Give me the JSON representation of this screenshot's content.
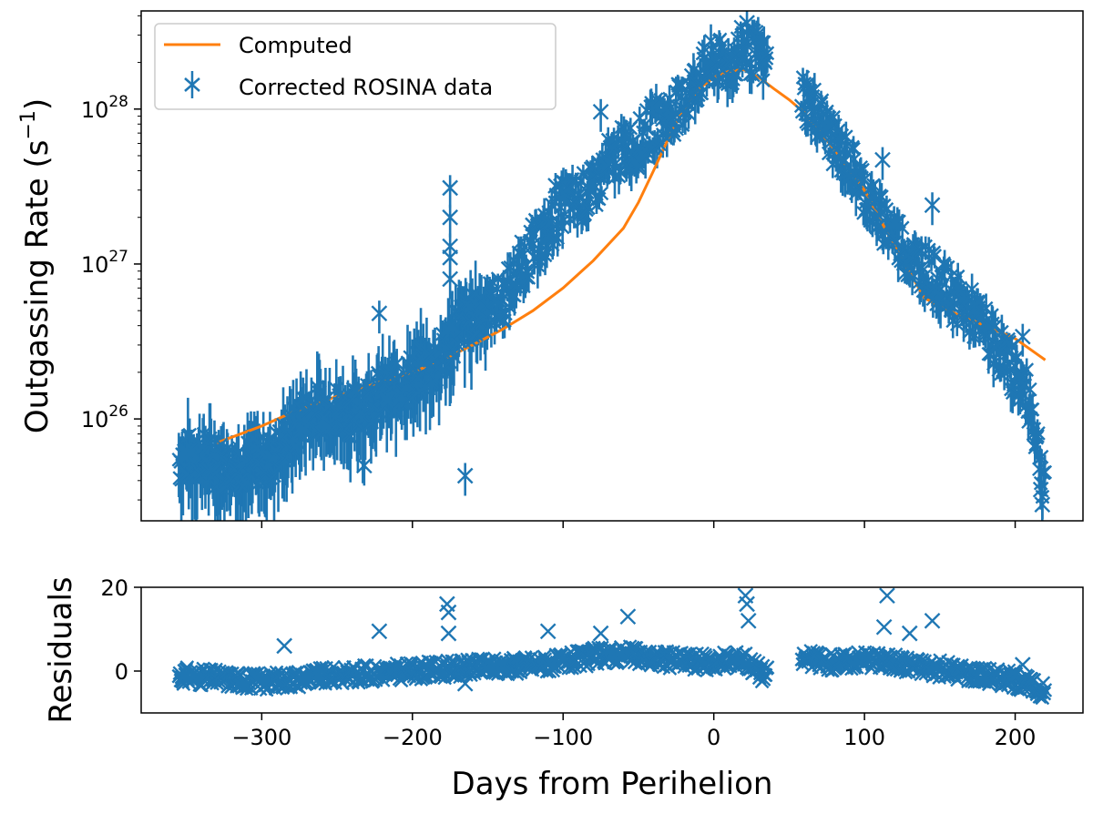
{
  "chart_data": [
    {
      "type": "line+scatter",
      "panel": "top",
      "yscale": "log",
      "ylabel": "Outgassing Rate (s⁻¹)",
      "ylabel_base": "Outgassing Rate (s",
      "ylabel_sup": "−1",
      "ylabel_close": ")",
      "xlim": [
        -380,
        245
      ],
      "ylim": [
        2.2e+25,
        4.3e+28
      ],
      "y_ticks": [
        {
          "value": 1e+26,
          "base": "10",
          "exp": "26"
        },
        {
          "value": 1e+27,
          "base": "10",
          "exp": "27"
        },
        {
          "value": 1e+28,
          "base": "10",
          "exp": "28"
        }
      ],
      "legend": {
        "placement": "top-left",
        "entries": [
          "Computed",
          "Corrected ROSINA data"
        ]
      },
      "series": [
        {
          "name": "Computed",
          "kind": "line",
          "color": "#ff7f0e",
          "x": [
            -330,
            -300,
            -280,
            -260,
            -240,
            -220,
            -200,
            -180,
            -160,
            -140,
            -120,
            -100,
            -80,
            -60,
            -50,
            -40,
            -30,
            -20,
            -10,
            0,
            10,
            20,
            30,
            40,
            50,
            60,
            80,
            100,
            120,
            140,
            160,
            180,
            200,
            220
          ],
          "y": [
            7e+25,
            9e+25,
            1.1e+26,
            1.3e+26,
            1.5e+26,
            1.75e+26,
            2e+26,
            2.4e+26,
            3e+26,
            3.8e+26,
            5e+26,
            7e+26,
            1.05e+27,
            1.7e+27,
            2.5e+27,
            4e+27,
            6.5e+27,
            1e+28,
            1.35e+28,
            1.6e+28,
            1.75e+28,
            1.8e+28,
            1.6e+28,
            1.35e+28,
            1.15e+28,
            9.5e+27,
            5.5e+27,
            3e+27,
            1.3e+27,
            6e+26,
            4.8e+26,
            4e+26,
            3.3e+26,
            2.4e+26
          ]
        },
        {
          "name": "Corrected ROSINA data",
          "kind": "errorbar-scatter",
          "color": "#1f77b4",
          "x_range": [
            -355,
            220
          ],
          "x": [
            -355,
            -340,
            -325,
            -310,
            -295,
            -285,
            -270,
            -255,
            -240,
            -225,
            -210,
            -200,
            -190,
            -180,
            -170,
            -160,
            -150,
            -140,
            -130,
            -120,
            -110,
            -100,
            -90,
            -80,
            -70,
            -60,
            -50,
            -40,
            -30,
            -20,
            -10,
            0,
            10,
            20,
            30,
            35,
            60,
            70,
            80,
            90,
            100,
            110,
            120,
            130,
            140,
            150,
            160,
            170,
            180,
            190,
            200,
            210,
            218
          ],
          "y": [
            5.5e+25,
            5.8e+25,
            5e+25,
            5.2e+25,
            5.5e+25,
            7e+25,
            1.1e+26,
            1.2e+26,
            1.1e+26,
            1.4e+26,
            1.6e+26,
            1.9e+26,
            2.2e+26,
            2.5e+26,
            4e+26,
            4.5e+26,
            5.5e+26,
            5.8e+26,
            9e+26,
            1.3e+27,
            1.6e+27,
            2.5e+27,
            2.6e+27,
            3e+27,
            4.5e+27,
            5.5e+27,
            6e+27,
            8e+27,
            9e+27,
            1.1e+28,
            1.6e+28,
            2e+28,
            1.9e+28,
            2.5e+28,
            2.2e+28,
            1.9e+28,
            1.2e+28,
            9e+27,
            6e+27,
            4.5e+27,
            3e+27,
            2e+27,
            1.6e+27,
            1.1e+27,
            9.5e+26,
            7.5e+26,
            6e+26,
            5e+26,
            3.8e+26,
            2.8e+26,
            2e+26,
            1.3e+26,
            4.5e+25
          ]
        }
      ],
      "outliers": [
        {
          "x": -222,
          "y": 4.8e+26
        },
        {
          "x": -232,
          "y": 5e+25
        },
        {
          "x": -175,
          "y": 3.1e+27
        },
        {
          "x": -175,
          "y": 2e+27
        },
        {
          "x": -175,
          "y": 1.3e+27
        },
        {
          "x": -175,
          "y": 1.1e+27
        },
        {
          "x": -175,
          "y": 8e+26
        },
        {
          "x": -165,
          "y": 4.3e+25
        },
        {
          "x": -110,
          "y": 1.5e+27
        },
        {
          "x": -105,
          "y": 3.2e+27
        },
        {
          "x": -75,
          "y": 9.6e+27
        },
        {
          "x": 22,
          "y": 3.6e+28
        },
        {
          "x": 112,
          "y": 4.7e+27
        },
        {
          "x": 145,
          "y": 2.4e+27
        },
        {
          "x": 205,
          "y": 3.4e+26
        },
        {
          "x": 217,
          "y": 3.5e+25
        },
        {
          "x": 218,
          "y": 2.8e+25
        }
      ]
    },
    {
      "type": "scatter",
      "panel": "bottom",
      "ylabel": "Residuals",
      "xlabel": "Days from Perihelion",
      "xlim": [
        -380,
        245
      ],
      "ylim": [
        -10,
        20
      ],
      "x_ticks": [
        {
          "value": -300,
          "label": "−300"
        },
        {
          "value": -200,
          "label": "−200"
        },
        {
          "value": -100,
          "label": "−100"
        },
        {
          "value": 0,
          "label": "0"
        },
        {
          "value": 100,
          "label": "100"
        },
        {
          "value": 200,
          "label": "200"
        }
      ],
      "y_ticks": [
        {
          "value": 0,
          "label": "0"
        },
        {
          "value": 20,
          "label": "20"
        }
      ],
      "series": [
        {
          "name": "Residuals",
          "color": "#1f77b4",
          "x_range": [
            -355,
            220
          ],
          "trend_x": [
            -355,
            -300,
            -250,
            -200,
            -150,
            -100,
            -80,
            -60,
            -40,
            -20,
            0,
            20,
            30,
            35,
            60,
            80,
            100,
            120,
            140,
            160,
            180,
            200,
            220
          ],
          "trend_y": [
            -1,
            -2.5,
            -1,
            0,
            1,
            2,
            3.5,
            4,
            3,
            2.5,
            2,
            3,
            0,
            -1,
            3,
            2,
            3,
            2,
            1,
            0,
            -1,
            -2,
            -5
          ]
        }
      ],
      "outliers": [
        {
          "x": -285,
          "y": 6
        },
        {
          "x": -222,
          "y": 9.5
        },
        {
          "x": -177,
          "y": 16
        },
        {
          "x": -176,
          "y": 14
        },
        {
          "x": -176,
          "y": 9
        },
        {
          "x": -165,
          "y": -3
        },
        {
          "x": -110,
          "y": 9.5
        },
        {
          "x": -75,
          "y": 9
        },
        {
          "x": -57,
          "y": 13
        },
        {
          "x": 21,
          "y": 18
        },
        {
          "x": 22,
          "y": 16
        },
        {
          "x": 23,
          "y": 12
        },
        {
          "x": 115,
          "y": 18
        },
        {
          "x": 113,
          "y": 10.5
        },
        {
          "x": 145,
          "y": 12
        },
        {
          "x": 130,
          "y": 9
        },
        {
          "x": 205,
          "y": 1.5
        }
      ]
    }
  ]
}
